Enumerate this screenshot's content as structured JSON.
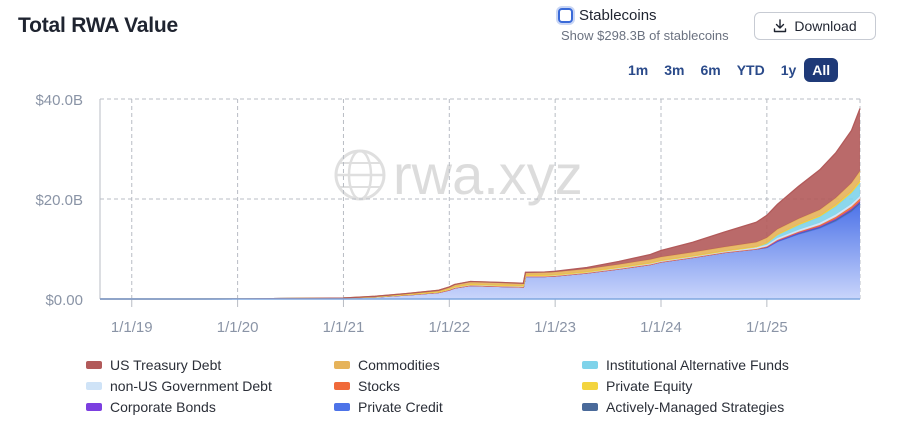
{
  "header": {
    "title": "Total RWA Value",
    "stablecoins_label": "Stablecoins",
    "stablecoins_sub": "Show $298.3B of stablecoins",
    "download_label": "Download"
  },
  "ranges": [
    {
      "label": "1m",
      "active": false
    },
    {
      "label": "3m",
      "active": false
    },
    {
      "label": "6m",
      "active": false
    },
    {
      "label": "YTD",
      "active": false
    },
    {
      "label": "1y",
      "active": false
    },
    {
      "label": "All",
      "active": true
    }
  ],
  "watermark": "rwa.xyz",
  "chart_data": {
    "type": "area",
    "title": "Total RWA Value",
    "y_ticks": [
      "$40.0B",
      "$20.0B",
      "$0.00"
    ],
    "y_tick_values": [
      40,
      20,
      0
    ],
    "ylim": [
      0,
      40
    ],
    "x_ticks": [
      "1/1/19",
      "1/1/20",
      "1/1/21",
      "1/1/22",
      "1/1/23",
      "1/1/24",
      "1/1/25"
    ],
    "x_tick_years": [
      2019,
      2020,
      2021,
      2022,
      2023,
      2024,
      2025
    ],
    "xlim": [
      2018.7,
      2025.88
    ],
    "grid": true,
    "legend_position": "bottom",
    "x": [
      2018.7,
      2019.0,
      2019.5,
      2020.0,
      2020.5,
      2021.0,
      2021.3,
      2021.6,
      2021.9,
      2022.0,
      2022.05,
      2022.2,
      2022.5,
      2022.7,
      2022.72,
      2022.9,
      2023.0,
      2023.3,
      2023.6,
      2023.9,
      2024.0,
      2024.3,
      2024.6,
      2024.9,
      2025.0,
      2025.1,
      2025.3,
      2025.5,
      2025.65,
      2025.8,
      2025.88
    ],
    "series": [
      {
        "name": "Private Credit",
        "color": "#4d73e8",
        "values": [
          0,
          0,
          0,
          0.02,
          0.1,
          0.2,
          0.4,
          0.8,
          1.3,
          1.8,
          2.2,
          2.7,
          2.5,
          2.4,
          4.5,
          4.5,
          4.6,
          5.2,
          6.0,
          6.9,
          7.4,
          8.3,
          9.3,
          10.0,
          10.3,
          11.5,
          13.0,
          14.2,
          15.6,
          17.5,
          19.0
        ]
      },
      {
        "name": "Actively-Managed Strategies",
        "color": "#4a6a9a",
        "values": [
          0,
          0,
          0,
          0,
          0,
          0,
          0,
          0,
          0,
          0,
          0,
          0,
          0,
          0,
          0,
          0,
          0,
          0,
          0,
          0,
          0,
          0,
          0,
          0,
          0.05,
          0.1,
          0.15,
          0.2,
          0.25,
          0.3,
          0.3
        ]
      },
      {
        "name": "Corporate Bonds",
        "color": "#7c3fe0",
        "values": [
          0,
          0,
          0,
          0,
          0,
          0,
          0,
          0,
          0,
          0,
          0,
          0,
          0,
          0,
          0,
          0,
          0,
          0,
          0,
          0,
          0,
          0,
          0,
          0,
          0.05,
          0.05,
          0.1,
          0.1,
          0.15,
          0.2,
          0.2
        ]
      },
      {
        "name": "Stocks",
        "color": "#f06a3a",
        "values": [
          0,
          0,
          0,
          0,
          0,
          0,
          0,
          0,
          0,
          0,
          0,
          0,
          0,
          0,
          0,
          0,
          0,
          0,
          0,
          0,
          0,
          0,
          0,
          0,
          0.1,
          0.15,
          0.2,
          0.3,
          0.4,
          0.5,
          0.6
        ]
      },
      {
        "name": "non-US Government Debt",
        "color": "#cfe3f7",
        "values": [
          0,
          0,
          0,
          0,
          0,
          0,
          0.05,
          0.1,
          0.15,
          0.2,
          0.25,
          0.25,
          0.25,
          0.25,
          0.25,
          0.25,
          0.25,
          0.25,
          0.3,
          0.3,
          0.3,
          0.3,
          0.3,
          0.35,
          0.35,
          0.4,
          0.4,
          0.45,
          0.5,
          0.5,
          0.5
        ]
      },
      {
        "name": "Institutional Alternative Funds",
        "color": "#7fd3ea",
        "values": [
          0,
          0,
          0,
          0,
          0,
          0,
          0,
          0,
          0,
          0,
          0,
          0,
          0,
          0,
          0,
          0,
          0,
          0,
          0,
          0,
          0,
          0,
          0,
          0.1,
          0.3,
          0.6,
          0.9,
          1.2,
          1.6,
          2.2,
          2.6
        ]
      },
      {
        "name": "Private Equity",
        "color": "#f3d43e",
        "values": [
          0,
          0,
          0,
          0,
          0,
          0,
          0,
          0,
          0,
          0,
          0,
          0,
          0,
          0,
          0,
          0,
          0,
          0,
          0,
          0,
          0,
          0,
          0,
          0,
          0.1,
          0.1,
          0.2,
          0.2,
          0.3,
          0.3,
          0.4
        ]
      },
      {
        "name": "Commodities",
        "color": "#e6b35a",
        "values": [
          0,
          0,
          0,
          0,
          0,
          0,
          0.1,
          0.2,
          0.3,
          0.4,
          0.45,
          0.55,
          0.55,
          0.5,
          0.5,
          0.55,
          0.55,
          0.55,
          0.6,
          0.7,
          0.7,
          0.75,
          0.8,
          0.9,
          1.0,
          1.05,
          1.1,
          1.2,
          1.4,
          1.7,
          2.0
        ]
      },
      {
        "name": "US Treasury Debt",
        "color": "#b25a5a",
        "values": [
          0,
          0,
          0,
          0,
          0,
          0,
          0,
          0,
          0,
          0,
          0,
          0,
          0,
          0,
          0.1,
          0.1,
          0.15,
          0.3,
          0.6,
          1.0,
          1.3,
          2.0,
          3.0,
          4.0,
          4.5,
          5.0,
          6.5,
          8.0,
          9.0,
          10.5,
          12.5
        ]
      }
    ],
    "legend": [
      "US Treasury Debt",
      "Commodities",
      "Institutional Alternative Funds",
      "non-US Government Debt",
      "Stocks",
      "Private Equity",
      "Corporate Bonds",
      "Private Credit",
      "Actively-Managed Strategies"
    ]
  }
}
